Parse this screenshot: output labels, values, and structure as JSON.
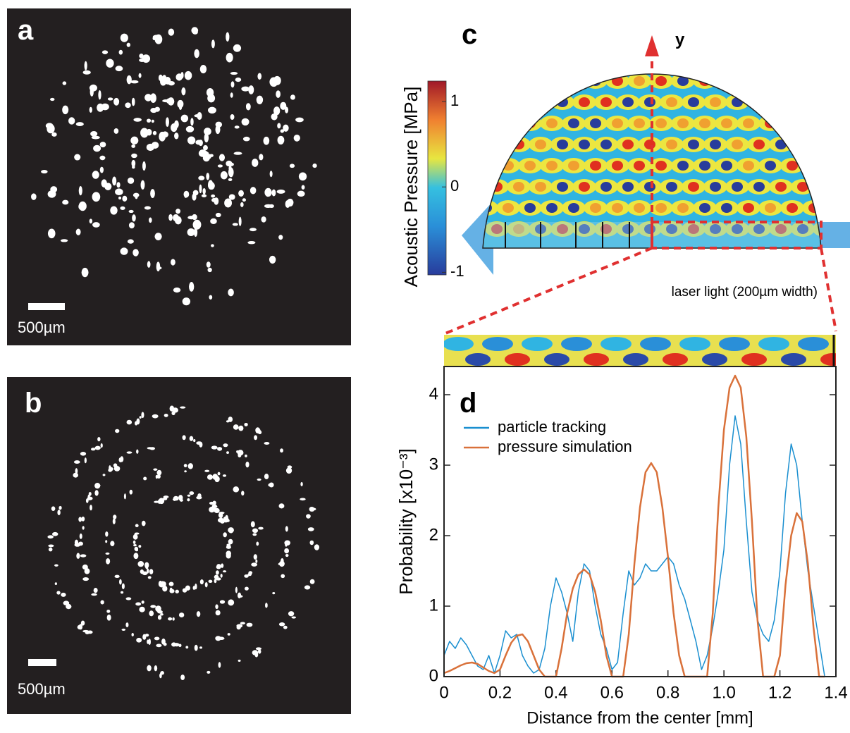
{
  "panels": {
    "a": {
      "label": "a",
      "scale_bar": "500µm"
    },
    "b": {
      "label": "b",
      "scale_bar": "500µm"
    },
    "c": {
      "label": "c",
      "axis_label": "y",
      "annotation": "laser light (200µm width)",
      "colorbar": {
        "label": "Acoustic Pressure [MPa]",
        "clim": [
          -1.03,
          1.24
        ],
        "ticks": [
          1,
          0,
          -1
        ]
      }
    }
  },
  "chart_data": {
    "type": "line",
    "panel_label": "d",
    "xlabel": "Distance from the center [mm]",
    "ylabel": "Probability [x10⁻³]",
    "x": [
      0,
      0.02,
      0.04,
      0.06,
      0.08,
      0.1,
      0.12,
      0.14,
      0.16,
      0.18,
      0.2,
      0.22,
      0.24,
      0.26,
      0.28,
      0.3,
      0.32,
      0.34,
      0.36,
      0.38,
      0.4,
      0.42,
      0.44,
      0.46,
      0.48,
      0.5,
      0.52,
      0.54,
      0.56,
      0.58,
      0.6,
      0.62,
      0.64,
      0.66,
      0.68,
      0.7,
      0.72,
      0.74,
      0.76,
      0.78,
      0.8,
      0.82,
      0.84,
      0.86,
      0.88,
      0.9,
      0.92,
      0.94,
      0.96,
      0.98,
      1.0,
      1.02,
      1.04,
      1.06,
      1.08,
      1.1,
      1.12,
      1.14,
      1.16,
      1.18,
      1.2,
      1.22,
      1.24,
      1.26,
      1.28,
      1.3,
      1.32,
      1.34,
      1.36
    ],
    "series": [
      {
        "name": "particle tracking",
        "color": "#1a8fd0",
        "values": [
          0.3,
          0.5,
          0.4,
          0.55,
          0.45,
          0.3,
          0.15,
          0.1,
          0.3,
          0.05,
          0.3,
          0.65,
          0.55,
          0.6,
          0.3,
          0.15,
          0.05,
          0.1,
          0.4,
          1.0,
          1.4,
          1.2,
          0.9,
          0.5,
          1.2,
          1.6,
          1.5,
          1.0,
          0.6,
          0.4,
          0.1,
          0.2,
          0.9,
          1.5,
          1.3,
          1.4,
          1.6,
          1.5,
          1.5,
          1.6,
          1.7,
          1.6,
          1.3,
          1.1,
          0.8,
          0.5,
          0.1,
          0.3,
          0.7,
          1.2,
          1.8,
          3.0,
          3.7,
          3.3,
          2.2,
          1.2,
          0.8,
          0.6,
          0.5,
          0.8,
          1.5,
          2.6,
          3.3,
          3.0,
          2.2,
          1.5,
          1.0,
          0.5,
          0
        ]
      },
      {
        "name": "pressure simulation",
        "color": "#d9713a",
        "values": [
          0.05,
          0.08,
          0.12,
          0.16,
          0.19,
          0.2,
          0.18,
          0.13,
          0.08,
          0.05,
          0.1,
          0.3,
          0.48,
          0.58,
          0.6,
          0.5,
          0.3,
          0.1,
          0,
          0,
          0,
          0.4,
          0.9,
          1.25,
          1.45,
          1.52,
          1.45,
          1.2,
          0.8,
          0.3,
          0,
          0,
          0,
          0.6,
          1.6,
          2.4,
          2.9,
          3.03,
          2.9,
          2.4,
          1.7,
          0.9,
          0.3,
          0,
          0,
          0,
          0,
          0,
          0.9,
          2.4,
          3.5,
          4.1,
          4.27,
          4.1,
          3.4,
          2.2,
          0.8,
          0,
          0,
          0,
          0.3,
          1.3,
          2.0,
          2.32,
          2.2,
          1.6,
          0.7,
          0,
          0
        ]
      }
    ],
    "xlim": [
      0,
      1.4
    ],
    "ylim": [
      0,
      4.4
    ],
    "xticks": [
      0,
      0.2,
      0.4,
      0.6,
      0.8,
      {
        "value": 1,
        "label": "1.0"
      },
      1.2,
      1.4
    ],
    "yticks": [
      0,
      1,
      2,
      3,
      4
    ],
    "legend": "upper left"
  }
}
